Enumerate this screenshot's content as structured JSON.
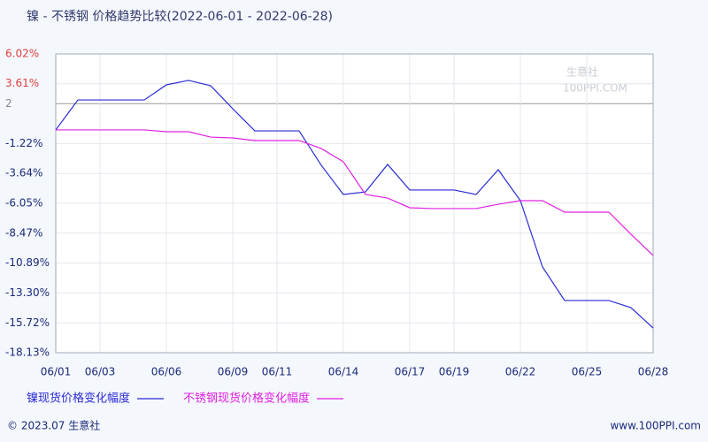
{
  "chart_data": {
    "type": "line",
    "title": "镍 - 不锈钢 价格趋势比较(2022-06-01 - 2022-06-28)",
    "categories": [
      "06/01",
      null,
      "06/03",
      null,
      null,
      "06/06",
      null,
      null,
      "06/09",
      null,
      "06/11",
      null,
      null,
      "06/14",
      null,
      null,
      "06/17",
      null,
      "06/19",
      null,
      null,
      "06/22",
      null,
      null,
      "06/25",
      null,
      null,
      "06/28"
    ],
    "series": [
      {
        "name": "镍现货价格变化幅度",
        "color": "#2a2ad6",
        "values": [
          -0.12,
          2.3,
          2.3,
          2.3,
          2.3,
          3.52,
          3.88,
          3.45,
          1.59,
          -0.2,
          -0.2,
          -0.2,
          -2.98,
          -5.34,
          -5.13,
          -2.91,
          -4.98,
          -4.98,
          -4.98,
          -5.34,
          -3.34,
          -5.84,
          -11.2,
          -13.91,
          -13.91,
          -13.91,
          -14.49,
          -16.13
        ]
      },
      {
        "name": "不锈钢现货价格变化幅度",
        "color": "#e020e0",
        "values": [
          -0.12,
          -0.12,
          -0.12,
          -0.12,
          -0.12,
          -0.27,
          -0.27,
          -0.7,
          -0.77,
          -0.98,
          -0.98,
          -0.98,
          -1.62,
          -2.7,
          -5.34,
          -5.63,
          -6.41,
          -6.48,
          -6.48,
          -6.48,
          -6.13,
          -5.84,
          -5.84,
          -6.77,
          -6.77,
          -6.77,
          -8.56,
          -10.27
        ]
      }
    ],
    "ylim": [
      -18.13,
      6.02
    ],
    "yticks": [
      {
        "value": 6.02,
        "label": "6.02%"
      },
      {
        "value": 3.61,
        "label": "3.61%"
      },
      2,
      {
        "value": -1.22,
        "label": "-1.22%"
      },
      {
        "value": -3.64,
        "label": "-3.64%"
      },
      {
        "value": -6.05,
        "label": "-6.05%"
      },
      {
        "value": -8.47,
        "label": "-8.47%"
      },
      {
        "value": -10.89,
        "label": "-10.89%"
      },
      {
        "value": -13.3,
        "label": "-13.30%"
      },
      {
        "value": -15.72,
        "label": "-15.72%"
      },
      {
        "value": -18.13,
        "label": "-18.13%"
      }
    ],
    "grid": true,
    "watermark": [
      "生意社",
      "100PPI.COM"
    ],
    "footer": {
      "left": "© 2023.07 生意社",
      "right": "www.100PPI.com"
    }
  }
}
